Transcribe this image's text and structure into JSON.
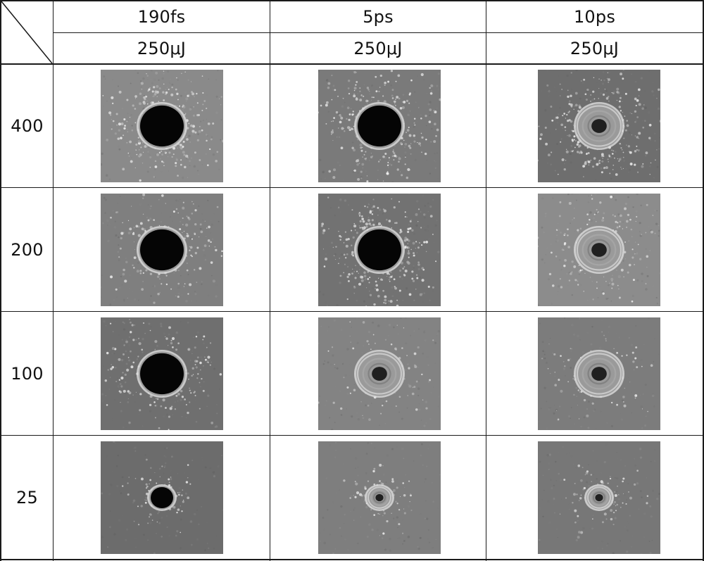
{
  "pulse_durations": [
    "190fs",
    "5ps",
    "10ps"
  ],
  "pulse_energies": [
    "250μJ",
    "250μJ",
    "250μJ"
  ],
  "row_labels": [
    "400",
    "200",
    "100",
    "25"
  ],
  "photos": [
    [
      {
        "hole": "open",
        "debris": "heavy",
        "tone": "#8a8a8a"
      },
      {
        "hole": "open",
        "debris": "heavy",
        "tone": "#7a7a7a"
      },
      {
        "hole": "ring",
        "debris": "heavy",
        "tone": "#6e6e6e"
      }
    ],
    [
      {
        "hole": "open",
        "debris": "medium",
        "tone": "#7f7f7f"
      },
      {
        "hole": "open",
        "debris": "heavy",
        "tone": "#727272"
      },
      {
        "hole": "ring",
        "debris": "medium",
        "tone": "#8c8c8c"
      }
    ],
    [
      {
        "hole": "open",
        "debris": "medium",
        "tone": "#6f6f6f"
      },
      {
        "hole": "crater",
        "debris": "light",
        "tone": "#838383"
      },
      {
        "hole": "crater",
        "debris": "light",
        "tone": "#7c7c7c"
      }
    ],
    [
      {
        "hole": "small",
        "debris": "light",
        "tone": "#6c6c6c"
      },
      {
        "hole": "small-crater",
        "debris": "light",
        "tone": "#7e7e7e"
      },
      {
        "hole": "small-crater",
        "debris": "light",
        "tone": "#777777"
      }
    ]
  ]
}
